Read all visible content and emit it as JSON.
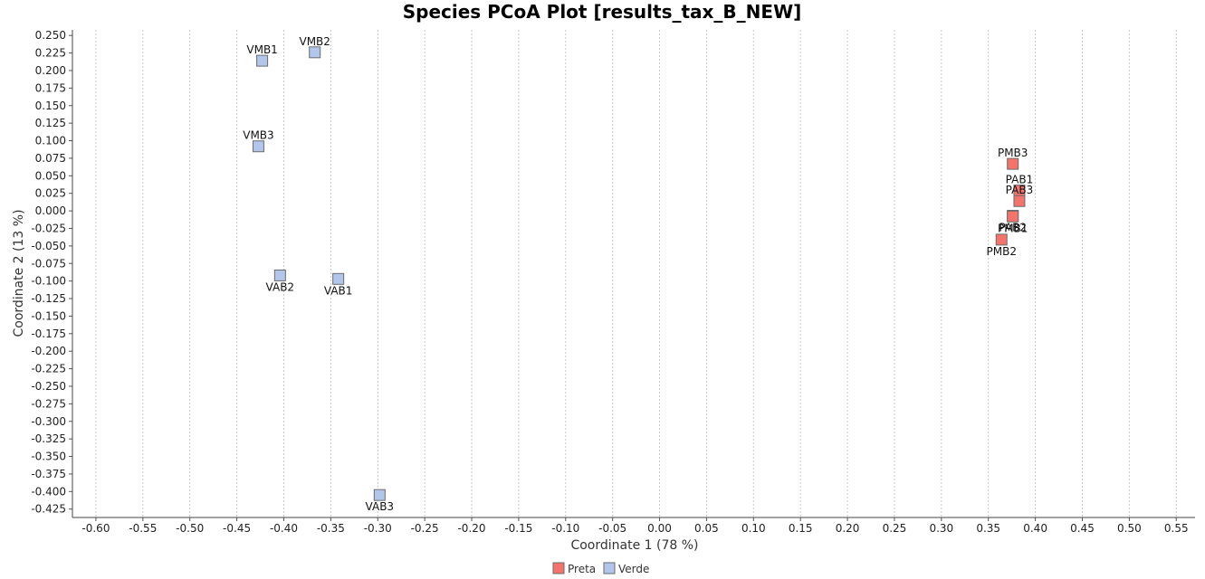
{
  "chart_data": {
    "type": "scatter",
    "title": "Species PCoA Plot [results_tax_B_NEW]",
    "xlabel": "Coordinate 1 (78 %)",
    "ylabel": "Coordinate 2 (13 %)",
    "xlim": [
      -0.625,
      0.57
    ],
    "ylim": [
      -0.437,
      0.258
    ],
    "xticks": [
      "-0.60",
      "-0.55",
      "-0.50",
      "-0.45",
      "-0.40",
      "-0.35",
      "-0.30",
      "-0.25",
      "-0.20",
      "-0.15",
      "-0.10",
      "-0.05",
      "0.00",
      "0.05",
      "0.10",
      "0.15",
      "0.20",
      "0.25",
      "0.30",
      "0.35",
      "0.40",
      "0.45",
      "0.50",
      "0.55"
    ],
    "yticks": [
      "0.250",
      "0.225",
      "0.200",
      "0.175",
      "0.150",
      "0.125",
      "0.100",
      "0.075",
      "0.050",
      "0.025",
      "0.000",
      "-0.025",
      "-0.050",
      "-0.075",
      "-0.100",
      "-0.125",
      "-0.150",
      "-0.175",
      "-0.200",
      "-0.225",
      "-0.250",
      "-0.275",
      "-0.300",
      "-0.325",
      "-0.350",
      "-0.375",
      "-0.400",
      "-0.425"
    ],
    "grid": "vertical dashed",
    "legend_position": "bottom-center",
    "series": [
      {
        "name": "Preta",
        "color": "#f4736b",
        "points": [
          {
            "label": "PMB3",
            "x": 0.376,
            "y": 0.067,
            "label_pos": "above"
          },
          {
            "label": "PAB1",
            "x": 0.383,
            "y": 0.029,
            "label_pos": "above"
          },
          {
            "label": "PAB3",
            "x": 0.383,
            "y": 0.014,
            "label_pos": "above"
          },
          {
            "label": "PAB2",
            "x": 0.376,
            "y": -0.007,
            "label_pos": "below"
          },
          {
            "label": "PMB1",
            "x": 0.376,
            "y": -0.008,
            "label_pos": "below"
          },
          {
            "label": "PMB2",
            "x": 0.364,
            "y": -0.041,
            "label_pos": "below"
          }
        ]
      },
      {
        "name": "Verde",
        "color": "#b2c6ec",
        "points": [
          {
            "label": "VMB1",
            "x": -0.423,
            "y": 0.214,
            "label_pos": "above"
          },
          {
            "label": "VMB2",
            "x": -0.367,
            "y": 0.226,
            "label_pos": "above"
          },
          {
            "label": "VMB3",
            "x": -0.427,
            "y": 0.092,
            "label_pos": "above"
          },
          {
            "label": "VAB2",
            "x": -0.404,
            "y": -0.092,
            "label_pos": "below"
          },
          {
            "label": "VAB1",
            "x": -0.342,
            "y": -0.097,
            "label_pos": "below"
          },
          {
            "label": "VAB3",
            "x": -0.298,
            "y": -0.405,
            "label_pos": "below"
          }
        ]
      }
    ]
  }
}
